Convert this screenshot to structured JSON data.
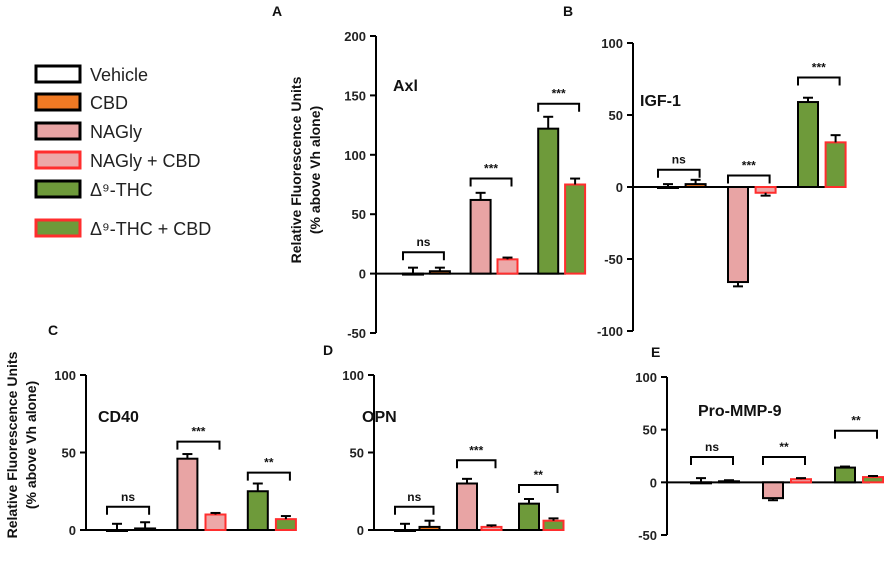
{
  "colors": {
    "Vehicle": {
      "fill": "#ffffff",
      "stroke": "#000000"
    },
    "CBD": {
      "fill": "#f07a24",
      "stroke": "#000000"
    },
    "NAGly": {
      "fill": "#e8a4a4",
      "stroke": "#000000"
    },
    "NAGly + CBD": {
      "fill": "#eda8a8",
      "stroke": "#ff2e2e"
    },
    "THC": {
      "fill": "#6e9a3a",
      "stroke": "#000000"
    },
    "THC + CBD": {
      "fill": "#6e9a3a",
      "stroke": "#ff2e2e"
    }
  },
  "legend": [
    {
      "key": "Vehicle",
      "label": "Vehicle"
    },
    {
      "key": "CBD",
      "label": "CBD"
    },
    {
      "key": "NAGly",
      "label": "NAGly"
    },
    {
      "key": "NAGly + CBD",
      "label": "NAGly + CBD"
    },
    {
      "key": "THC",
      "label": "Δ⁹-THC"
    },
    {
      "key": "THC + CBD",
      "label": "Δ⁹-THC + CBD"
    }
  ],
  "y_axis_label_line1": "Relative Fluorescence Units",
  "y_axis_label_line2": "(% above Vh alone)",
  "chart_data": [
    {
      "type": "bar",
      "panel": "A",
      "title": "Axl",
      "categories": [
        "Vehicle",
        "CBD",
        "NAGly",
        "NAGly + CBD",
        "THC",
        "THC + CBD"
      ],
      "values": [
        0,
        2,
        62,
        12,
        122,
        75
      ],
      "errors": [
        5,
        3,
        6,
        1.5,
        10,
        5
      ],
      "ylim": [
        -50,
        200
      ],
      "yticks": [
        -50,
        0,
        50,
        100,
        150,
        200
      ],
      "ylabel": "Relative Fluorescence Units (% above Vh alone)",
      "significance": [
        {
          "pair": [
            0,
            1
          ],
          "label": "ns",
          "level": 18
        },
        {
          "pair": [
            2,
            3
          ],
          "label": "***",
          "level": 80
        },
        {
          "pair": [
            4,
            5
          ],
          "label": "***",
          "level": 143
        }
      ]
    },
    {
      "type": "bar",
      "panel": "B",
      "title": "IGF-1",
      "categories": [
        "Vehicle",
        "CBD",
        "NAGly",
        "NAGly + CBD",
        "THC",
        "THC + CBD"
      ],
      "values": [
        0,
        2,
        -66,
        -4,
        59,
        31
      ],
      "errors": [
        2,
        3,
        3,
        2,
        3,
        5
      ],
      "ylim": [
        -100,
        100
      ],
      "yticks": [
        -100,
        -50,
        0,
        50,
        100
      ],
      "ylabel": "",
      "significance": [
        {
          "pair": [
            0,
            1
          ],
          "label": "ns",
          "level": 12
        },
        {
          "pair": [
            2,
            3
          ],
          "label": "***",
          "level": 8
        },
        {
          "pair": [
            4,
            5
          ],
          "label": "***",
          "level": 76
        }
      ]
    },
    {
      "type": "bar",
      "panel": "C",
      "title": "CD40",
      "categories": [
        "Vehicle",
        "CBD",
        "NAGly",
        "NAGly + CBD",
        "THC",
        "THC + CBD"
      ],
      "values": [
        0,
        1,
        46,
        10,
        25,
        7
      ],
      "errors": [
        4,
        4,
        3,
        1,
        5,
        2
      ],
      "ylim": [
        0,
        100
      ],
      "yticks": [
        0,
        50,
        100
      ],
      "ylabel": "Relative Fluorescence Units (% above Vh alone)",
      "significance": [
        {
          "pair": [
            0,
            1
          ],
          "label": "ns",
          "level": 15
        },
        {
          "pair": [
            2,
            3
          ],
          "label": "***",
          "level": 57
        },
        {
          "pair": [
            4,
            5
          ],
          "label": "**",
          "level": 37
        }
      ]
    },
    {
      "type": "bar",
      "panel": "D",
      "title": "OPN",
      "categories": [
        "Vehicle",
        "CBD",
        "NAGly",
        "NAGly + CBD",
        "THC",
        "THC + CBD"
      ],
      "values": [
        0,
        2,
        30,
        2,
        17,
        6
      ],
      "errors": [
        4,
        4,
        3,
        1,
        3,
        1.5
      ],
      "ylim": [
        0,
        100
      ],
      "yticks": [
        0,
        50,
        100
      ],
      "ylabel": "",
      "significance": [
        {
          "pair": [
            0,
            1
          ],
          "label": "ns",
          "level": 15
        },
        {
          "pair": [
            2,
            3
          ],
          "label": "***",
          "level": 45
        },
        {
          "pair": [
            4,
            5
          ],
          "label": "**",
          "level": 29
        }
      ]
    },
    {
      "type": "bar",
      "panel": "E",
      "title": "Pro-MMP-9",
      "categories": [
        "Vehicle",
        "CBD",
        "NAGly",
        "NAGly + CBD",
        "THC",
        "THC + CBD"
      ],
      "values": [
        0,
        1,
        -15,
        3,
        14,
        5
      ],
      "errors": [
        4,
        1,
        2,
        1,
        1,
        1
      ],
      "ylim": [
        -50,
        100
      ],
      "yticks": [
        -50,
        0,
        50,
        100
      ],
      "ylabel": "",
      "significance": [
        {
          "pair": [
            0,
            1
          ],
          "label": "ns",
          "level": 24
        },
        {
          "pair": [
            2,
            3
          ],
          "label": "**",
          "level": 24
        },
        {
          "pair": [
            4,
            5
          ],
          "label": "**",
          "level": 49
        }
      ]
    }
  ]
}
